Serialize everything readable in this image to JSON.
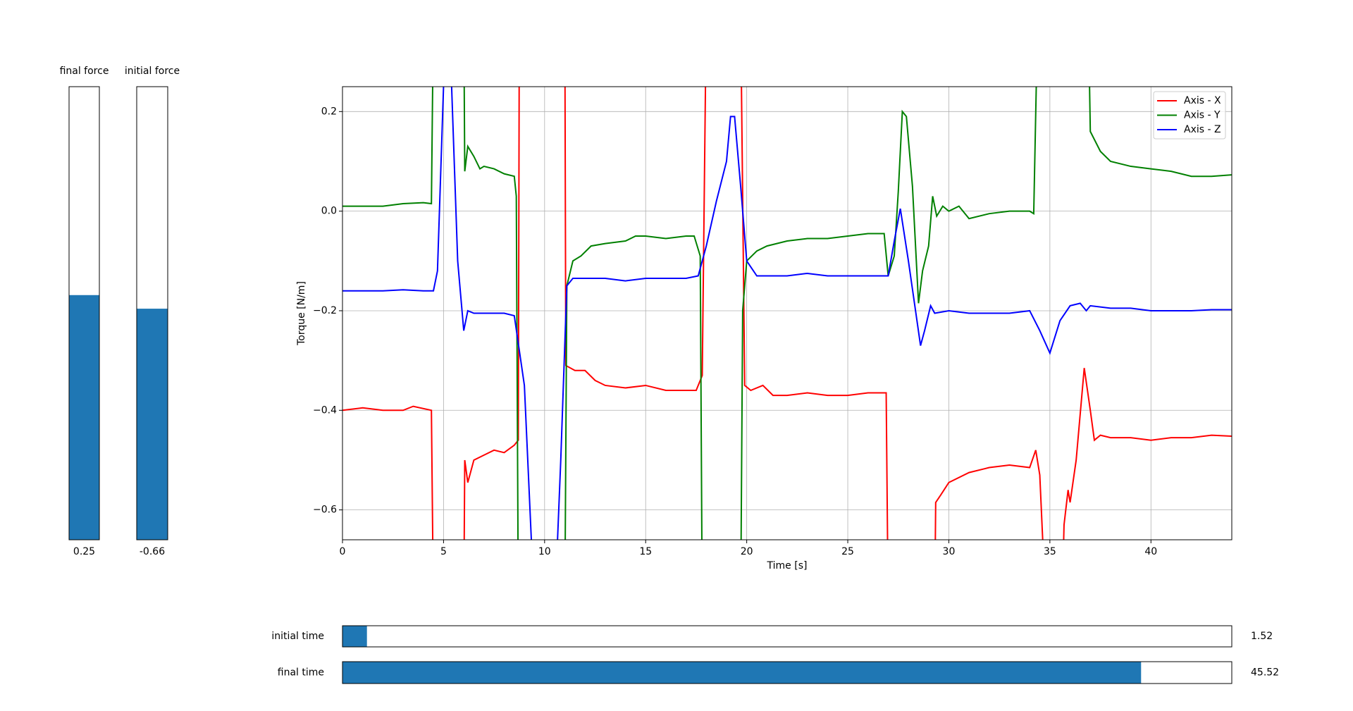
{
  "chart_data": {
    "type": "line",
    "xlabel": "Time [s]",
    "ylabel": "Torque [N/m]",
    "xlim": [
      0,
      44
    ],
    "ylim": [
      -0.66,
      0.25
    ],
    "xticks": [
      0,
      5,
      10,
      15,
      20,
      25,
      30,
      35,
      40
    ],
    "yticks": [
      {
        "value": -0.6,
        "label": "−0.6"
      },
      {
        "value": -0.4,
        "label": "−0.4"
      },
      {
        "value": -0.2,
        "label": "−0.2"
      },
      {
        "value": 0,
        "label": "0.0"
      },
      {
        "value": 0.2,
        "label": "0.2"
      }
    ],
    "grid": true,
    "legend": "upper right",
    "series": [
      {
        "name": "Axis - X",
        "color": "#ff0000",
        "x": [
          0,
          1,
          2,
          3,
          3.5,
          4.4,
          4.5,
          6.0,
          6.05,
          6.2,
          6.5,
          7,
          7.5,
          8,
          8.5,
          8.7,
          8.75,
          11.0,
          11.05,
          11.5,
          12,
          12.5,
          13,
          14,
          15,
          16,
          17,
          17.5,
          17.8,
          18.0,
          19.7,
          19.9,
          20.2,
          20.8,
          21.3,
          22,
          23,
          24,
          25,
          26,
          26.9,
          27,
          29.3,
          29.35,
          29.6,
          30,
          31,
          32,
          33,
          34,
          34.3,
          34.5,
          34.8,
          35.6,
          35.7,
          35.9,
          36,
          36.3,
          36.7,
          37.0,
          37.2,
          37.5,
          38,
          39,
          40,
          41,
          42,
          43,
          44
        ],
        "values": [
          -0.4,
          -0.395,
          -0.4,
          -0.4,
          -0.392,
          -0.4,
          -0.8,
          -0.8,
          -0.5,
          -0.545,
          -0.5,
          -0.49,
          -0.48,
          -0.485,
          -0.47,
          -0.46,
          0.4,
          0.4,
          -0.31,
          -0.32,
          -0.32,
          -0.34,
          -0.35,
          -0.355,
          -0.35,
          -0.36,
          -0.36,
          -0.36,
          -0.33,
          0.4,
          0.4,
          -0.35,
          -0.36,
          -0.35,
          -0.37,
          -0.37,
          -0.365,
          -0.37,
          -0.37,
          -0.365,
          -0.365,
          -0.8,
          -0.8,
          -0.585,
          -0.57,
          -0.545,
          -0.525,
          -0.515,
          -0.51,
          -0.515,
          -0.48,
          -0.53,
          -0.8,
          -0.8,
          -0.63,
          -0.56,
          -0.585,
          -0.5,
          -0.315,
          -0.4,
          -0.46,
          -0.45,
          -0.455,
          -0.455,
          -0.46,
          -0.455,
          -0.455,
          -0.45,
          -0.452
        ]
      },
      {
        "name": "Axis - Y",
        "color": "#008000",
        "x": [
          0,
          1,
          2,
          3,
          4,
          4.4,
          4.5,
          6.0,
          6.05,
          6.2,
          6.5,
          6.8,
          7,
          7.5,
          8,
          8.5,
          8.6,
          8.7,
          11.0,
          11.1,
          11.4,
          11.8,
          12.3,
          13,
          14,
          14.5,
          15,
          16,
          17,
          17.4,
          17.7,
          17.8,
          19.7,
          19.8,
          20,
          20.5,
          21,
          22,
          23,
          24,
          25,
          26,
          26.8,
          27.0,
          27.3,
          27.5,
          27.7,
          27.9,
          28.2,
          28.5,
          28.7,
          29.0,
          29.2,
          29.4,
          29.7,
          30,
          30.5,
          31,
          32,
          33,
          34,
          34.2,
          34.4,
          36.9,
          37,
          37.5,
          38,
          39,
          40,
          41,
          42,
          43,
          44
        ],
        "values": [
          0.01,
          0.01,
          0.01,
          0.015,
          0.017,
          0.015,
          0.4,
          0.4,
          0.08,
          0.13,
          0.11,
          0.085,
          0.09,
          0.085,
          0.075,
          0.07,
          0.03,
          -0.8,
          -0.8,
          -0.15,
          -0.1,
          -0.09,
          -0.07,
          -0.065,
          -0.06,
          -0.05,
          -0.05,
          -0.055,
          -0.05,
          -0.05,
          -0.09,
          -0.8,
          -0.8,
          -0.2,
          -0.1,
          -0.08,
          -0.07,
          -0.06,
          -0.055,
          -0.055,
          -0.05,
          -0.045,
          -0.045,
          -0.13,
          -0.09,
          0.04,
          0.2,
          0.19,
          0.05,
          -0.185,
          -0.12,
          -0.07,
          0.03,
          -0.01,
          0.01,
          0.0,
          0.01,
          -0.015,
          -0.005,
          0.0,
          0.0,
          -0.005,
          0.4,
          0.4,
          0.16,
          0.12,
          0.1,
          0.09,
          0.085,
          0.08,
          0.07,
          0.07,
          0.073
        ]
      },
      {
        "name": "Axis - Z",
        "color": "#0000ff",
        "x": [
          0,
          1,
          2,
          3,
          4,
          4.5,
          4.7,
          5.0,
          5.2,
          5.4,
          5.7,
          6.0,
          6.2,
          6.5,
          7,
          8,
          8.5,
          9.0,
          9.5,
          10.5,
          10.8,
          11.1,
          11.4,
          12,
          13,
          14,
          15,
          16,
          17,
          17.6,
          18,
          18.5,
          19,
          19.2,
          19.4,
          19.7,
          20,
          20.5,
          21,
          22,
          23,
          24,
          25,
          26,
          27,
          27.3,
          27.6,
          28,
          28.6,
          28.8,
          29.1,
          29.3,
          30,
          31,
          32,
          33,
          34,
          34.5,
          35,
          35.5,
          36,
          36.5,
          36.8,
          37,
          38,
          39,
          40,
          41,
          42,
          43,
          44
        ],
        "values": [
          -0.16,
          -0.16,
          -0.16,
          -0.158,
          -0.16,
          -0.16,
          -0.12,
          0.25,
          0.3,
          0.25,
          -0.1,
          -0.24,
          -0.2,
          -0.205,
          -0.205,
          -0.205,
          -0.21,
          -0.35,
          -0.8,
          -0.8,
          -0.5,
          -0.15,
          -0.135,
          -0.135,
          -0.135,
          -0.14,
          -0.135,
          -0.135,
          -0.135,
          -0.13,
          -0.07,
          0.02,
          0.1,
          0.19,
          0.19,
          0.05,
          -0.1,
          -0.13,
          -0.13,
          -0.13,
          -0.125,
          -0.13,
          -0.13,
          -0.13,
          -0.13,
          -0.06,
          0.005,
          -0.1,
          -0.27,
          -0.24,
          -0.19,
          -0.205,
          -0.2,
          -0.205,
          -0.205,
          -0.205,
          -0.2,
          -0.24,
          -0.285,
          -0.22,
          -0.19,
          -0.185,
          -0.2,
          -0.19,
          -0.195,
          -0.195,
          -0.2,
          -0.2,
          -0.2,
          -0.198,
          -0.198
        ]
      }
    ]
  },
  "sliders": [
    {
      "label": "final force",
      "value": 0.25,
      "fill": 0.54
    },
    {
      "label": "initial force",
      "value": -0.66,
      "fill": 0.51
    },
    {
      "label": "initial time",
      "value": 1.52,
      "fill": 0.0275
    },
    {
      "label": "final time",
      "value": 45.52,
      "fill": 0.898
    }
  ]
}
